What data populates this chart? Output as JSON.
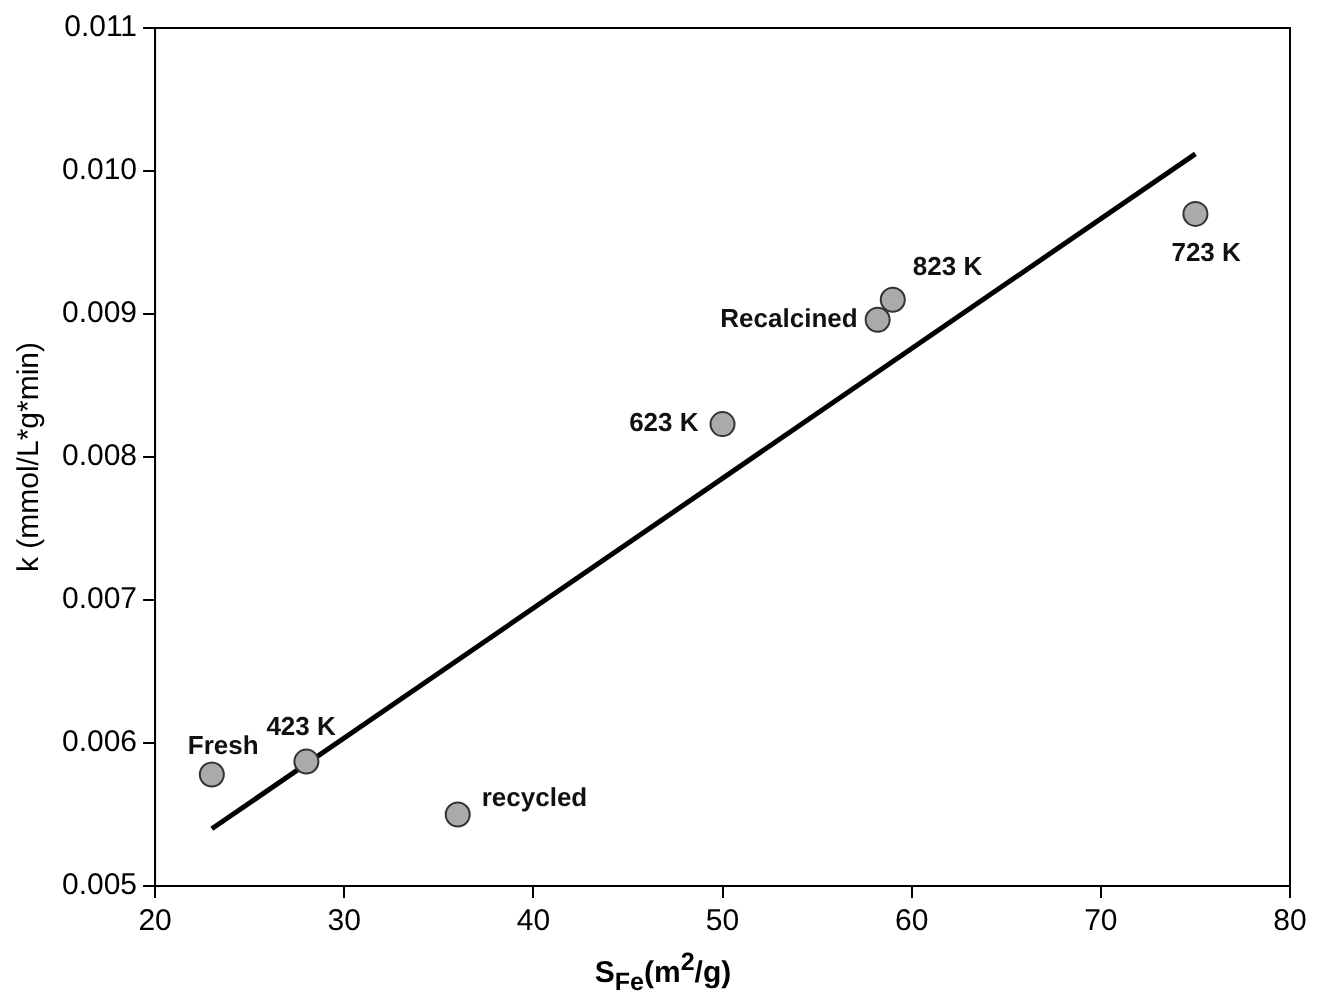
{
  "chart_data": {
    "type": "scatter",
    "xlabel": "S$_{Fe}$(m$^{2}$/g)",
    "ylabel": "k (mmol/L*g*min)",
    "xlim": [
      20,
      80
    ],
    "xticks": [
      20,
      30,
      40,
      50,
      60,
      70,
      80
    ],
    "ylim": [
      0.005,
      0.011
    ],
    "yticks": [
      0.005,
      0.006,
      0.007,
      0.008,
      0.009,
      {
        "value": 0.01,
        "label": "0.010"
      },
      0.011
    ],
    "legend": false,
    "series": [
      {
        "marker": "circle",
        "color": "#aaaaaa",
        "x": [
          23,
          28,
          36,
          50,
          58.2,
          59,
          75
        ],
        "values": [
          0.00578,
          0.00587,
          0.0055,
          0.00823,
          0.00896,
          0.0091,
          0.0097
        ]
      },
      {
        "type": "line",
        "marker": "none",
        "color": "#000000",
        "x": [
          23,
          75
        ],
        "values": [
          0.0054,
          0.01012
        ]
      }
    ],
    "annotations": [
      {
        "text": "Fresh",
        "x": 23,
        "y": 0.00578
      },
      {
        "text": "423 K",
        "x": 28,
        "y": 0.00587
      },
      {
        "text": "recycled",
        "x": 36,
        "y": 0.0055
      },
      {
        "text": "623 K",
        "x": 50,
        "y": 0.00823
      },
      {
        "text": "Recalcined",
        "x": 58.2,
        "y": 0.00896
      },
      {
        "text": "823 K",
        "x": 59,
        "y": 0.0091
      },
      {
        "text": "723 K",
        "x": 75,
        "y": 0.0097
      }
    ]
  }
}
